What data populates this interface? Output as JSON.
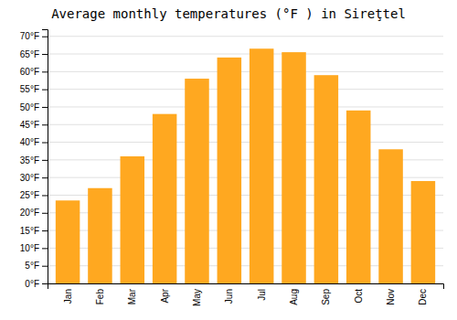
{
  "chart_data": {
    "type": "bar",
    "title": "Average monthly temperatures (°F ) in Sireţtel",
    "categories": [
      "Jan",
      "Feb",
      "Mar",
      "Apr",
      "May",
      "Jun",
      "Jul",
      "Aug",
      "Sep",
      "Oct",
      "Nov",
      "Dec"
    ],
    "values": [
      23.5,
      27.0,
      36.0,
      48.0,
      58.0,
      64.0,
      66.5,
      65.5,
      59.0,
      49.0,
      38.0,
      29.0
    ],
    "color": "#FFA820",
    "ylim": [
      0,
      72
    ],
    "yticks": [
      {
        "value": 0,
        "label": "0°F"
      },
      {
        "value": 5,
        "label": "5°F"
      },
      {
        "value": 10,
        "label": "10°F"
      },
      {
        "value": 15,
        "label": "15°F"
      },
      {
        "value": 20,
        "label": "20°F"
      },
      {
        "value": 25,
        "label": "25°F"
      },
      {
        "value": 30,
        "label": "30°F"
      },
      {
        "value": 35,
        "label": "35°F"
      },
      {
        "value": 40,
        "label": "40°F"
      },
      {
        "value": 45,
        "label": "45°F"
      },
      {
        "value": 50,
        "label": "50°F"
      },
      {
        "value": 55,
        "label": "55°F"
      },
      {
        "value": 60,
        "label": "60°F"
      },
      {
        "value": 65,
        "label": "65°F"
      },
      {
        "value": 70,
        "label": "70°F"
      }
    ],
    "grid": true
  }
}
